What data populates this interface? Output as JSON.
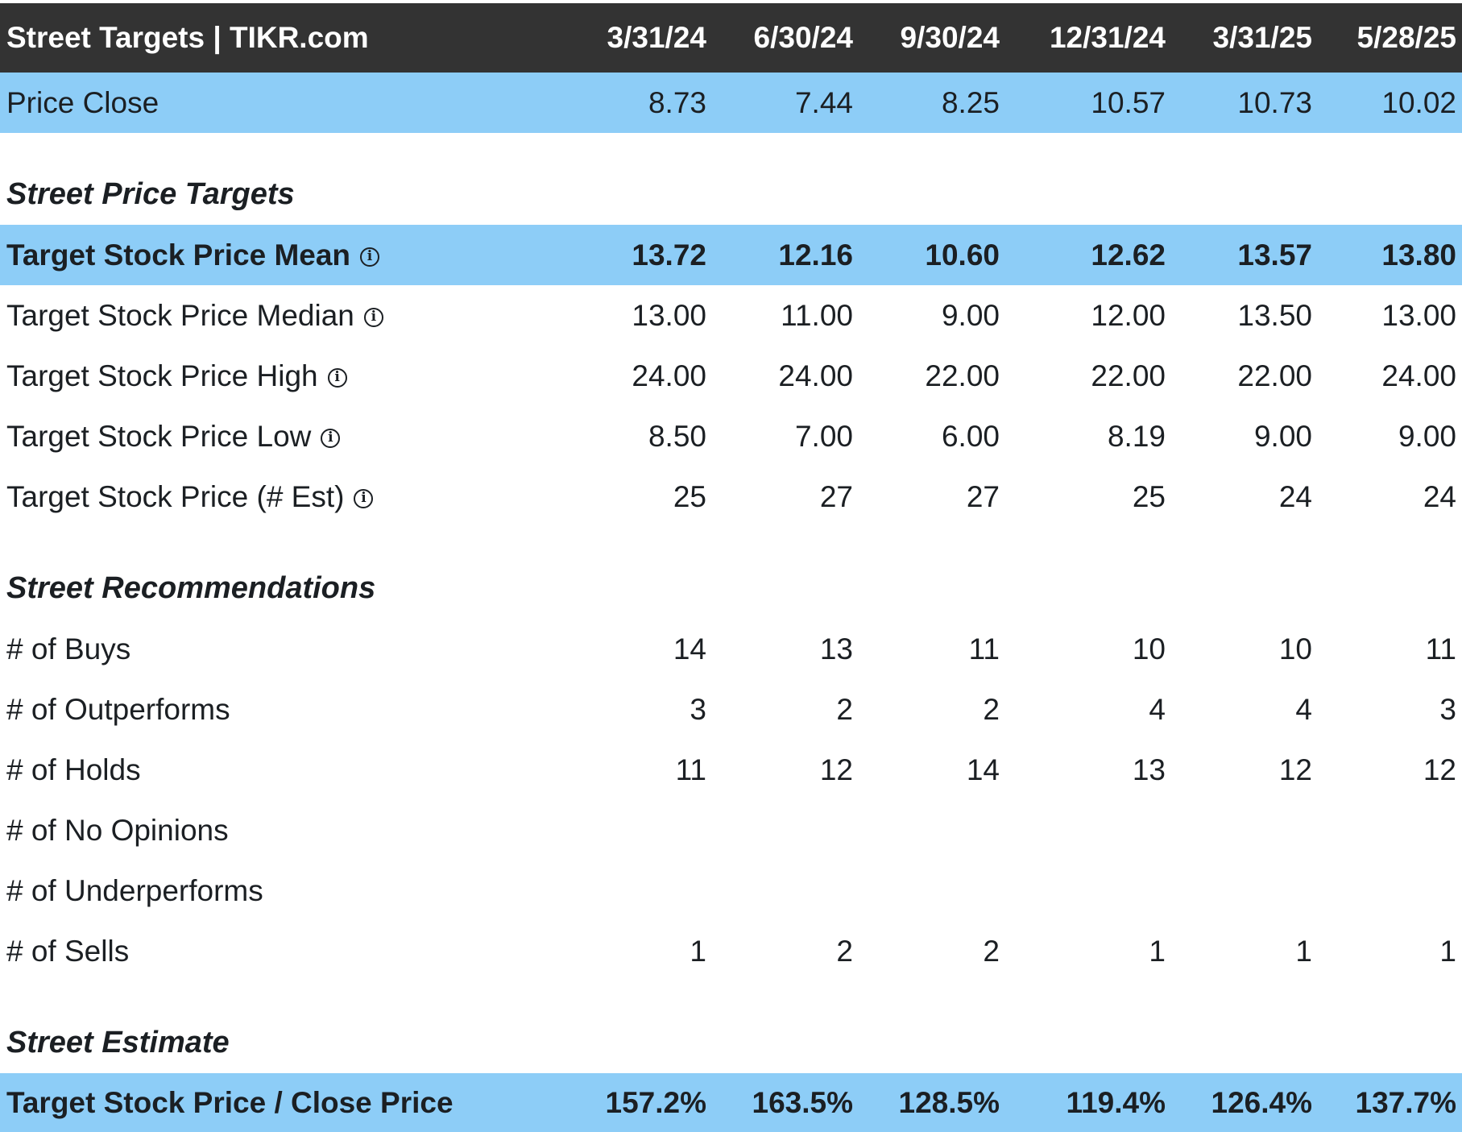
{
  "header": {
    "title": "Street Targets | TIKR.com",
    "dates": [
      "3/31/24",
      "6/30/24",
      "9/30/24",
      "12/31/24",
      "3/31/25",
      "5/28/25"
    ]
  },
  "colors": {
    "header_bg": "#333333",
    "highlight_bg": "#8dcdf7"
  },
  "sections": [
    {
      "rows": [
        {
          "label": "Price Close",
          "values": [
            "8.73",
            "7.44",
            "8.25",
            "10.57",
            "10.73",
            "10.02"
          ],
          "style": "hl"
        }
      ]
    },
    {
      "title": "Street Price Targets",
      "rows": [
        {
          "label": "Target Stock Price Mean",
          "info": true,
          "values": [
            "13.72",
            "12.16",
            "10.60",
            "12.62",
            "13.57",
            "13.80"
          ],
          "style": "hl bold"
        },
        {
          "label": "Target Stock Price Median",
          "info": true,
          "values": [
            "13.00",
            "11.00",
            "9.00",
            "12.00",
            "13.50",
            "13.00"
          ]
        },
        {
          "label": "Target Stock Price High",
          "info": true,
          "values": [
            "24.00",
            "24.00",
            "22.00",
            "22.00",
            "22.00",
            "24.00"
          ]
        },
        {
          "label": "Target Stock Price Low",
          "info": true,
          "values": [
            "8.50",
            "7.00",
            "6.00",
            "8.19",
            "9.00",
            "9.00"
          ]
        },
        {
          "label": "Target Stock Price (# Est)",
          "info": true,
          "values": [
            "25",
            "27",
            "27",
            "25",
            "24",
            "24"
          ]
        }
      ]
    },
    {
      "title": "Street Recommendations",
      "rows": [
        {
          "label": "# of Buys",
          "values": [
            "14",
            "13",
            "11",
            "10",
            "10",
            "11"
          ]
        },
        {
          "label": "# of Outperforms",
          "values": [
            "3",
            "2",
            "2",
            "4",
            "4",
            "3"
          ]
        },
        {
          "label": "# of Holds",
          "values": [
            "11",
            "12",
            "14",
            "13",
            "12",
            "12"
          ]
        },
        {
          "label": "# of No Opinions",
          "values": [
            "",
            "",
            "",
            "",
            "",
            ""
          ]
        },
        {
          "label": "# of Underperforms",
          "values": [
            "",
            "",
            "",
            "",
            "",
            ""
          ]
        },
        {
          "label": "# of Sells",
          "values": [
            "1",
            "2",
            "2",
            "1",
            "1",
            "1"
          ]
        }
      ]
    },
    {
      "title": "Street Estimate",
      "rows": [
        {
          "label": "Target Stock Price / Close Price",
          "values": [
            "157.2%",
            "163.5%",
            "128.5%",
            "119.4%",
            "126.4%",
            "137.7%"
          ],
          "style": "hl bold last"
        }
      ]
    }
  ],
  "info_icon_glyph": "i"
}
